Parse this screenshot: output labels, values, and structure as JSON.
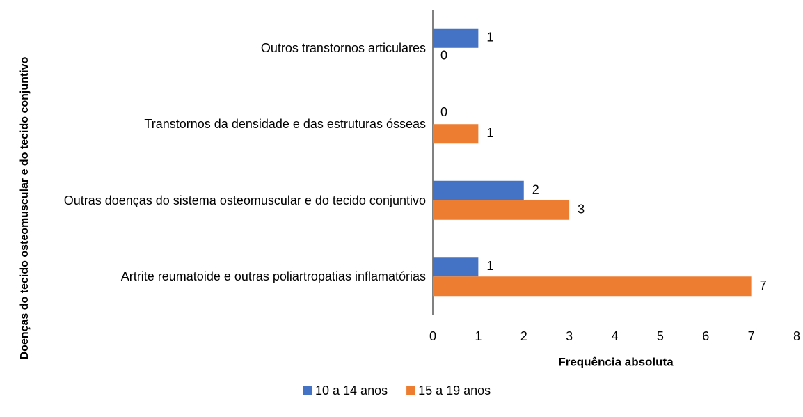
{
  "chart_data": {
    "type": "barh",
    "ylabel": "Doenças do tecido osteomuscular e do tecido conjuntivo",
    "xlabel": "Frequência absoluta",
    "categories": [
      "Outros transtornos articulares",
      "Transtornos da densidade e das estruturas ósseas",
      "Outras doenças do sistema osteomuscular e do tecido conjuntivo",
      "Artrite reumatoide e outras poliartropatias inflamatórias"
    ],
    "series": [
      {
        "name": "10 a 14 anos",
        "color": "#4472c4",
        "values": [
          1,
          0,
          2,
          1
        ]
      },
      {
        "name": "15 a 19 anos",
        "color": "#ed7d31",
        "values": [
          0,
          1,
          3,
          7
        ]
      }
    ],
    "xlim": [
      0,
      8
    ],
    "xticks": [
      0,
      1,
      2,
      3,
      4,
      5,
      6,
      7,
      8
    ],
    "legend": "bottom"
  }
}
